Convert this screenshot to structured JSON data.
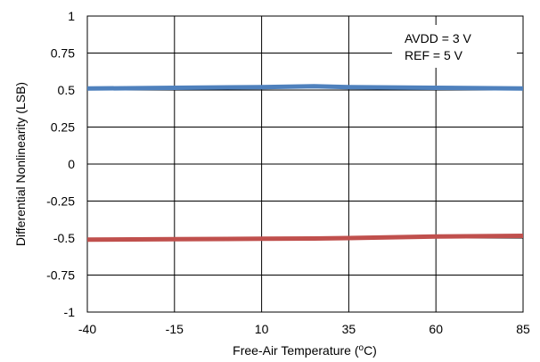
{
  "chart_data": {
    "type": "line",
    "title": "",
    "xlabel": "Free-Air Temperature (",
    "xlabel_superscript": "o",
    "xlabel_suffix": "C)",
    "ylabel": "Differential Nonlinearity (LSB)",
    "xlim": [
      -40,
      85
    ],
    "ylim": [
      -1,
      1
    ],
    "xticks": [
      -40,
      -15,
      10,
      35,
      60,
      85
    ],
    "xtick_labels": [
      "-40",
      "-15",
      "10",
      "35",
      "60",
      "85"
    ],
    "yticks": [
      1,
      0.75,
      0.5,
      0.25,
      0,
      -0.25,
      -0.5,
      -0.75,
      -1
    ],
    "ytick_labels": [
      "1",
      "0.75",
      "0.5",
      "0.25",
      "0",
      "-0.25",
      "-0.5",
      "-0.75",
      "-1"
    ],
    "grid": true,
    "legend": "none",
    "annotations": [
      "AVDD = 3 V",
      "REF = 5 V"
    ],
    "series": [
      {
        "color": "#4F81BD",
        "x": [
          -40,
          -15,
          10,
          25,
          35,
          60,
          85
        ],
        "y": [
          0.51,
          0.515,
          0.52,
          0.525,
          0.52,
          0.515,
          0.51
        ]
      },
      {
        "color": "#C0504D",
        "x": [
          -40,
          -15,
          10,
          25,
          35,
          60,
          85
        ],
        "y": [
          -0.51,
          -0.508,
          -0.505,
          -0.503,
          -0.5,
          -0.49,
          -0.485
        ]
      }
    ]
  }
}
